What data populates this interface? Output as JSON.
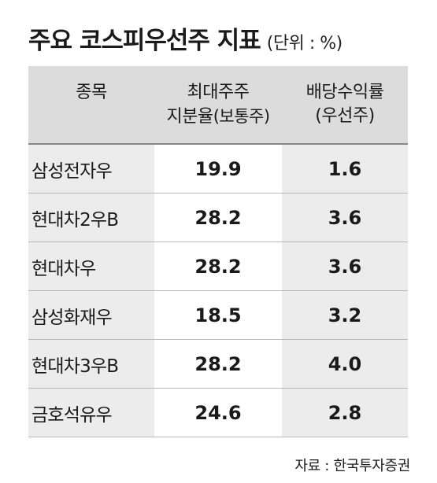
{
  "title": {
    "main": "주요 코스피우선주 지표",
    "unit": "(단위 : %)"
  },
  "table": {
    "headers": {
      "col1": "종목",
      "col2_line1": "최대주주",
      "col2_line2_main": "지분율",
      "col2_line2_sub": "(보통주)",
      "col3_line1": "배당수익률",
      "col3_line2": "(우선주)"
    },
    "rows": [
      {
        "name": "삼성전자우",
        "stake": "19.9",
        "yield": "1.6"
      },
      {
        "name": "현대차2우B",
        "stake": "28.2",
        "yield": "3.6"
      },
      {
        "name": "현대차우",
        "stake": "28.2",
        "yield": "3.6"
      },
      {
        "name": "삼성화재우",
        "stake": "18.5",
        "yield": "3.2"
      },
      {
        "name": "현대차3우B",
        "stake": "28.2",
        "yield": "4.0"
      },
      {
        "name": "금호석유우",
        "stake": "24.6",
        "yield": "2.8"
      }
    ]
  },
  "source": "자료 : 한국투자증권"
}
